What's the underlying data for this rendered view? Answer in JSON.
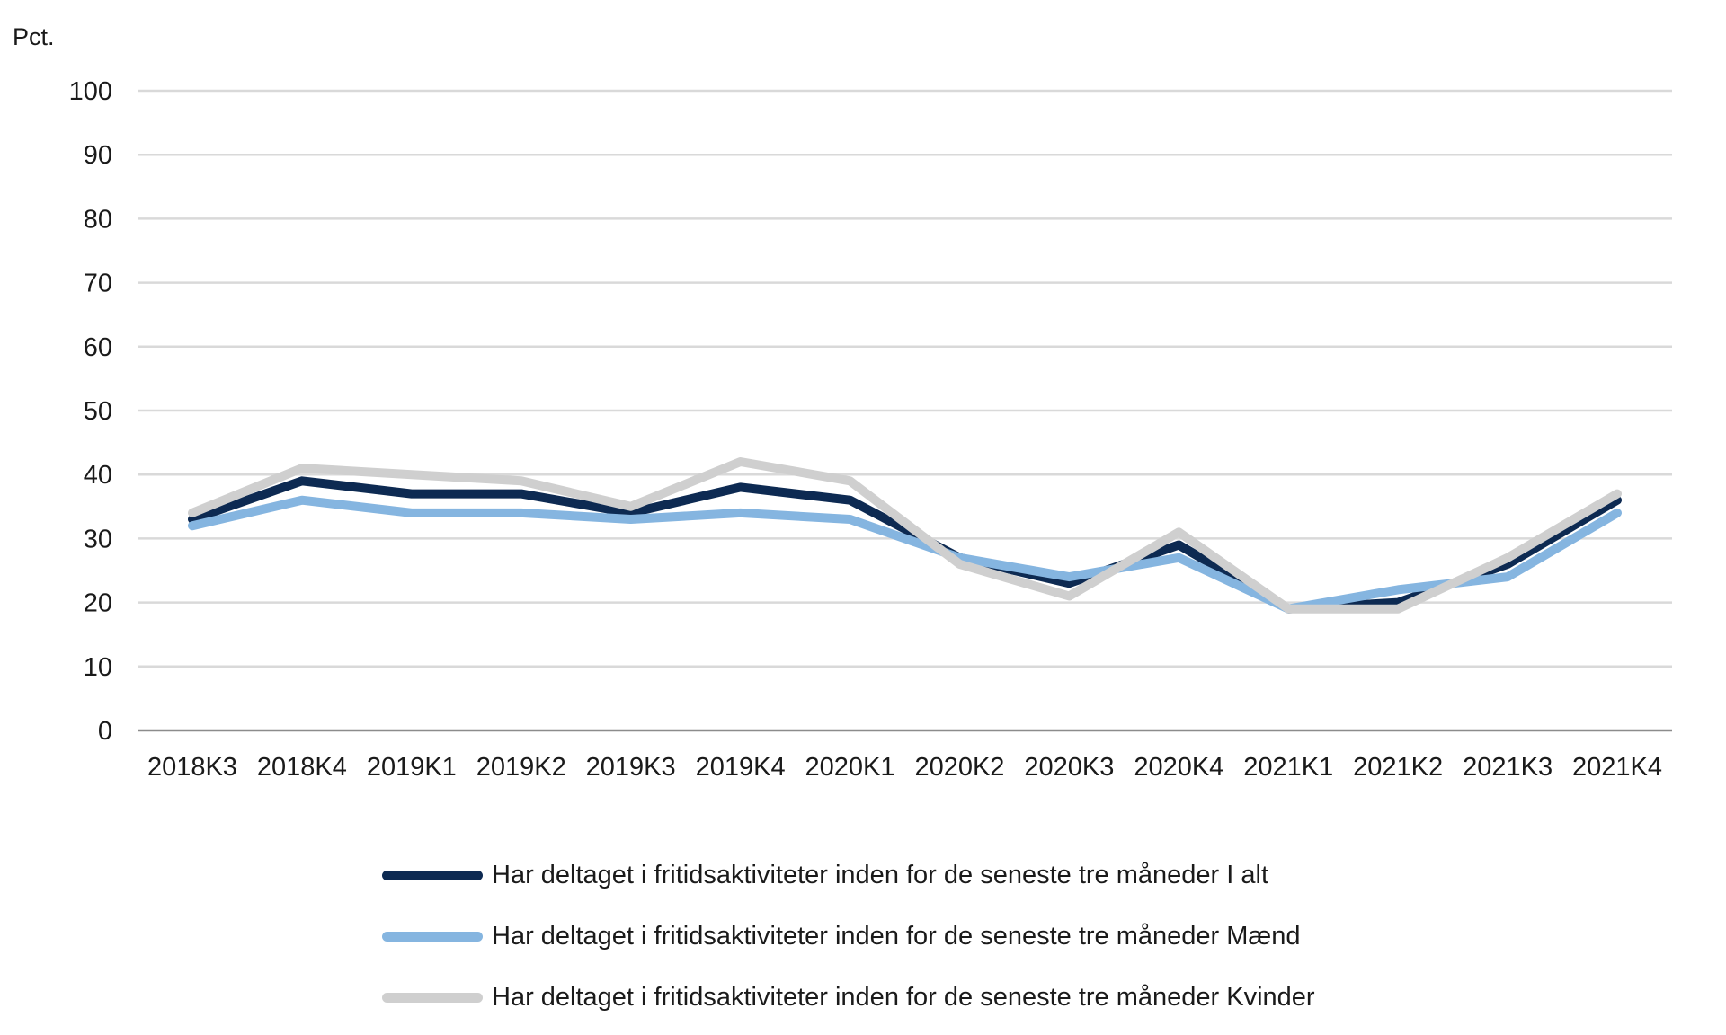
{
  "chart_data": {
    "type": "line",
    "ylabel": "Pct.",
    "ylim": [
      0,
      100
    ],
    "yticks": [
      0,
      10,
      20,
      30,
      40,
      50,
      60,
      70,
      80,
      90,
      100
    ],
    "grid": true,
    "legend_position": "bottom",
    "categories": [
      "2018K3",
      "2018K4",
      "2019K1",
      "2019K2",
      "2019K3",
      "2019K4",
      "2020K1",
      "2020K2",
      "2020K3",
      "2020K4",
      "2021K1",
      "2021K2",
      "2021K3",
      "2021K4"
    ],
    "series": [
      {
        "name": "Har deltaget i fritidsaktiviteter inden for de seneste tre måneder I alt",
        "color": "#0d2a52",
        "values": [
          33,
          39,
          37,
          37,
          34,
          38,
          36,
          27,
          23,
          29,
          19,
          20,
          26,
          36
        ]
      },
      {
        "name": "Har deltaget i fritidsaktiviteter inden for de seneste tre måneder Mænd",
        "color": "#85b5e0",
        "values": [
          32,
          36,
          34,
          34,
          33,
          34,
          33,
          27,
          24,
          27,
          19,
          22,
          24,
          34
        ]
      },
      {
        "name": "Har deltaget i fritidsaktiviteter inden for de seneste tre måneder Kvinder",
        "color": "#cfcfcf",
        "values": [
          34,
          41,
          40,
          39,
          35,
          42,
          39,
          26,
          21,
          31,
          19,
          19,
          27,
          37
        ]
      }
    ]
  }
}
